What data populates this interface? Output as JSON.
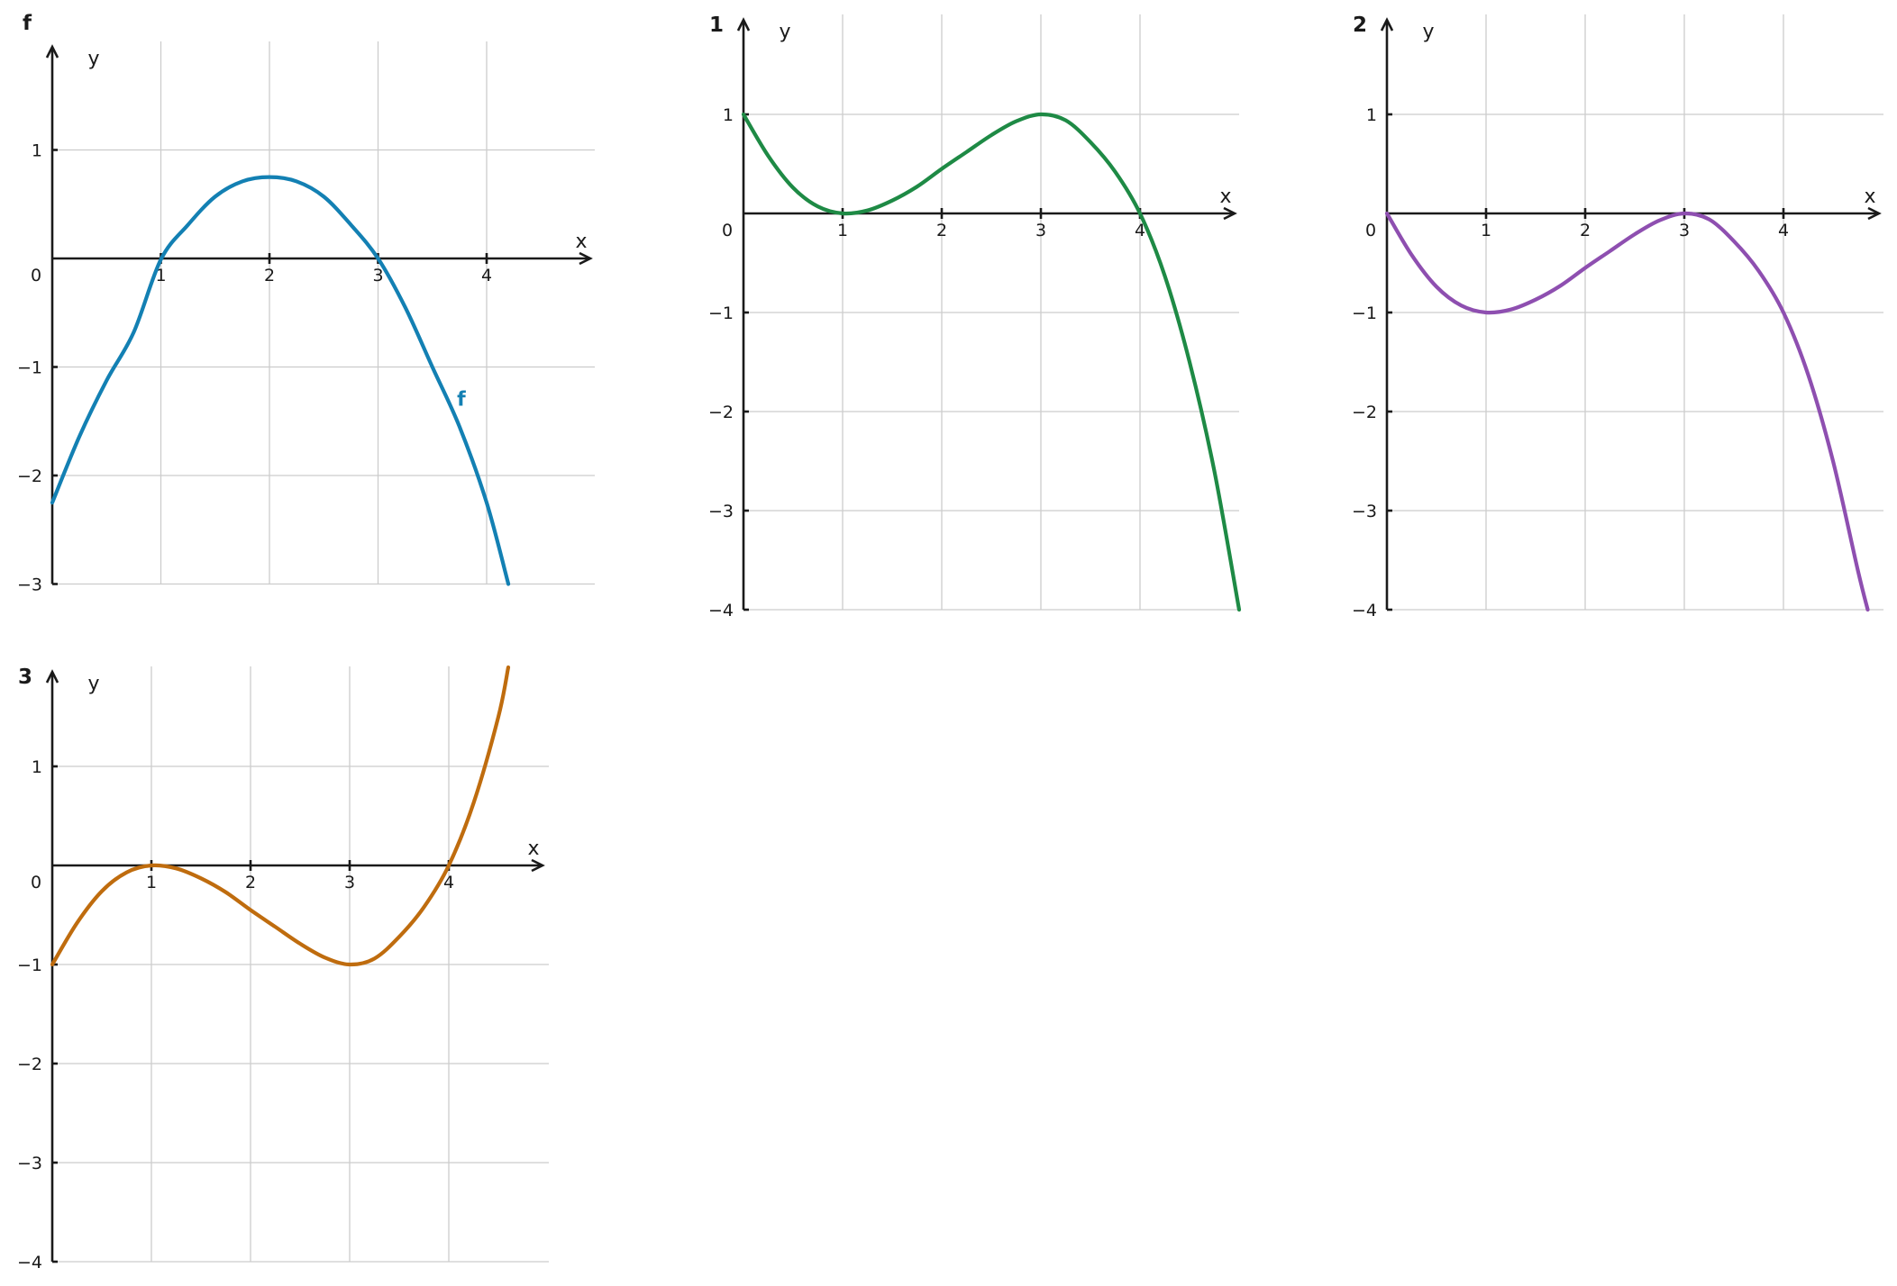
{
  "chart_data": [
    {
      "panel": "f",
      "type": "line",
      "xlabel": "x",
      "ylabel": "y",
      "origin_label": "0",
      "xlim": [
        0,
        5
      ],
      "ylim": [
        -3,
        2
      ],
      "xticks": [
        1,
        2,
        3,
        4
      ],
      "yticks": [
        -3,
        -2,
        -1,
        1
      ],
      "grid": true,
      "color": "#1380b3",
      "series_label": "f",
      "x": [
        0,
        0.25,
        0.5,
        0.75,
        1,
        1.25,
        1.5,
        1.75,
        2,
        2.25,
        2.5,
        2.75,
        3,
        3.25,
        3.5,
        3.75,
        4,
        4.2
      ],
      "y": [
        -2.25,
        -1.64,
        -1.125,
        -0.68,
        -0.01,
        0.31,
        0.57,
        0.71,
        0.75,
        0.71,
        0.57,
        0.31,
        0.0,
        -0.45,
        -1.0,
        -1.55,
        -2.25,
        -3.0
      ]
    },
    {
      "panel": "1",
      "type": "line",
      "xlabel": "x",
      "ylabel": "y",
      "origin_label": "0",
      "xlim": [
        0,
        5
      ],
      "ylim": [
        -4,
        2
      ],
      "xticks": [
        1,
        2,
        3,
        4
      ],
      "yticks": [
        -4,
        -3,
        -2,
        -1,
        1
      ],
      "grid": true,
      "color": "#1e8a45",
      "x": [
        0,
        0.25,
        0.5,
        0.75,
        1,
        1.25,
        1.5,
        1.75,
        2,
        2.25,
        2.5,
        2.75,
        3,
        3.25,
        3.5,
        3.75,
        4,
        4.25,
        4.5,
        4.75,
        5
      ],
      "y": [
        1.0,
        0.58,
        0.26,
        0.07,
        0.0,
        0.03,
        0.13,
        0.27,
        0.45,
        0.62,
        0.79,
        0.93,
        1.0,
        0.94,
        0.72,
        0.42,
        0.0,
        -0.63,
        -1.5,
        -2.6,
        -4.0
      ]
    },
    {
      "panel": "2",
      "type": "line",
      "xlabel": "x",
      "ylabel": "y",
      "origin_label": "0",
      "xlim": [
        0,
        5
      ],
      "ylim": [
        -4,
        2
      ],
      "xticks": [
        1,
        2,
        3,
        4
      ],
      "yticks": [
        -4,
        -3,
        -2,
        -1,
        1
      ],
      "grid": true,
      "color": "#8e4fb0",
      "x": [
        0,
        0.25,
        0.5,
        0.75,
        1,
        1.25,
        1.5,
        1.75,
        2,
        2.25,
        2.5,
        2.75,
        3,
        3.25,
        3.5,
        3.75,
        4,
        4.25,
        4.5,
        4.75,
        4.85
      ],
      "y": [
        0.0,
        -0.42,
        -0.74,
        -0.93,
        -1.0,
        -0.97,
        -0.87,
        -0.73,
        -0.55,
        -0.38,
        -0.21,
        -0.07,
        0.0,
        -0.06,
        -0.28,
        -0.58,
        -1.0,
        -1.63,
        -2.5,
        -3.6,
        -4.0
      ]
    },
    {
      "panel": "3",
      "type": "line",
      "xlabel": "x",
      "ylabel": "y",
      "origin_label": "0",
      "xlim": [
        0,
        5
      ],
      "ylim": [
        -4,
        2
      ],
      "xticks": [
        1,
        2,
        3,
        4
      ],
      "yticks": [
        -4,
        -3,
        -2,
        -1,
        1
      ],
      "grid": true,
      "color": "#bf6c0e",
      "x": [
        0,
        0.25,
        0.5,
        0.75,
        1,
        1.25,
        1.5,
        1.75,
        2,
        2.25,
        2.5,
        2.75,
        3,
        3.25,
        3.5,
        3.75,
        4,
        4.25,
        4.5,
        4.6
      ],
      "y": [
        -1.0,
        -0.58,
        -0.26,
        -0.07,
        0.0,
        -0.03,
        -0.13,
        -0.27,
        -0.45,
        -0.62,
        -0.79,
        -0.93,
        -1.0,
        -0.94,
        -0.72,
        -0.42,
        0.0,
        0.63,
        1.5,
        2.0
      ]
    }
  ]
}
